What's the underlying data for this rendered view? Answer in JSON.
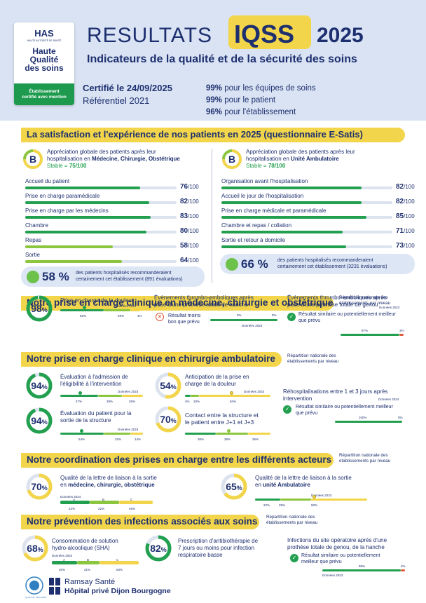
{
  "header": {
    "logo_has": "HAS",
    "logo_sub": "HAUTE AUTORITÉ DE SANTÉ",
    "logo_line1": "Haute",
    "logo_line2": "Qualité",
    "logo_line3": "des soins",
    "logo_cert1": "Établissement",
    "logo_cert2": "certifié avec mention",
    "title_a": "RESULTATS",
    "title_b": "IQSS",
    "title_c": "2025",
    "subtitle": "Indicateurs de la qualité et de la sécurité des soins",
    "certified": "Certifié le 24/09/2025",
    "referential": "Référentiel 2021",
    "p1_v": "99%",
    "p1_t": " pour les équipes de soins",
    "p2_v": "99%",
    "p2_t": " pour le patient",
    "p3_v": "96%",
    "p3_t": " pour l'établissement"
  },
  "satisfaction": {
    "title": "La satisfaction et l'expérience de nos patients en 2025 (questionnaire E-Satis)",
    "left": {
      "grade": "B",
      "desc1": "Appréciation globale des patients après leur",
      "desc2a": "hospitalisation en ",
      "desc2b": "Médecine, Chirurgie, Obstétrique",
      "stable_label": "Stable = ",
      "stable_value": "75/100",
      "items": [
        {
          "label": "Accueil du patient",
          "value": 76,
          "v": "76"
        },
        {
          "label": "Prise en charge paramédicale",
          "value": 82,
          "v": "82"
        },
        {
          "label": "Prise en charge par les médecins",
          "value": 83,
          "v": "83"
        },
        {
          "label": "Chambre",
          "value": 80,
          "v": "80"
        },
        {
          "label": "Repas",
          "value": 58,
          "v": "58"
        },
        {
          "label": "Sortie",
          "value": 64,
          "v": "64"
        }
      ],
      "reco_value": "58 %",
      "reco1": "des patients hospitalisés recommanderaient",
      "reco2": "certainement cet établissement (891 évaluations)"
    },
    "right": {
      "grade": "B",
      "desc1": "Appréciation globale des patients après leur",
      "desc2a": "hospitalisation en ",
      "desc2b": "Unité Ambulatoire",
      "stable_label": "Stable = ",
      "stable_value": "78/100",
      "items": [
        {
          "label": "Organisation avant l'hospitalisation",
          "value": 82,
          "v": "82"
        },
        {
          "label": "Accueil le jour de l'hospitalisation",
          "value": 82,
          "v": "82"
        },
        {
          "label": "Prise en charge médicale et paramédicale",
          "value": 85,
          "v": "85"
        },
        {
          "label": "Chambre et repas / collation",
          "value": 71,
          "v": "71"
        },
        {
          "label": "Sortie et retour à domicile",
          "value": 73,
          "v": "73"
        }
      ],
      "reco_value": "66 %",
      "reco1": "des patients hospitalisés recommanderaient",
      "reco2": "certainement cet établissement (3231 évaluations)"
    },
    "unit": "/100"
  },
  "mco": {
    "title": "Notre prise en charge clinique en médecine, chirurgie et obstétrique",
    "note1": "Répartition nationale des",
    "note2": "établissements par niveau",
    "douleur_value": "98",
    "douleur_unit": "%",
    "douleur_label": "Prise en charge de la douleur",
    "douleur_year": "Données 2024",
    "douleur_p": [
      "52%",
      "48%",
      "4%"
    ],
    "hanche_1": "Évènements thrombo-emboliques après",
    "hanche_2": "pose d'une prothèse totale de hanche",
    "hanche_r1": "Résultat moins",
    "hanche_r2": "bon que prévu",
    "hanche_year": "Données 2023",
    "hanche_p": [
      "0%",
      "0%"
    ],
    "genou_1": "Évènements thrombo-emboliques après",
    "genou_2": "pose d'une prothèse totale de genou",
    "genou_year": "Données 2023",
    "genou_r1": "Résultat similaire ou potentiellement meilleur",
    "genou_r2": "que prévu",
    "genou_p": [
      "97%",
      "3%"
    ]
  },
  "ambu": {
    "title": "Notre prise en charge clinique en chirurgie ambulatoire",
    "note1": "Répartition nationale des",
    "note2": "établissements par niveau",
    "elig_value": "94",
    "elig_1": "Évaluation à l'admission de",
    "elig_2": "l'éligibilité à l'intervention",
    "elig_year": "Données 2023",
    "elig_p": [
      "47%",
      "29%",
      "25%"
    ],
    "antic_value": "54",
    "antic_1": "Anticipation de la prise en",
    "antic_2": "charge de la douleur",
    "antic_year": "Données 2023",
    "antic_p": [
      "4%",
      "10%",
      "94%"
    ],
    "sortie_value": "94",
    "sortie_1": "Évaluation du patient pour la",
    "sortie_2": "sortie de la structure",
    "sortie_year": "Données 2023",
    "sortie_p": [
      "54%",
      "32%",
      "14%"
    ],
    "contact_value": "70",
    "contact_1": "Contact entre la structure et",
    "contact_2": "le patient entre J+1 et J+3",
    "contact_p": [
      "36%",
      "38%",
      "26%"
    ],
    "rehosp_1": "Réhospitalisations entre 1 et 3 jours après",
    "rehosp_2": "intervention",
    "rehosp_year": "Données 2024",
    "rehosp_r1": "Résultat similaire ou potentiellement meilleur",
    "rehosp_r2": "que prévu",
    "rehosp_p": [
      "100%",
      "0%"
    ]
  },
  "coord": {
    "title": "Notre coordination des prises en charge entre les différents acteurs",
    "note1": "Répartition nationale des",
    "note2": "établissements par niveau",
    "mco_value": "70",
    "mco_1": "Qualité de la lettre de liaison à la sortie",
    "mco_2a": "en ",
    "mco_2b": "médecine, chirurgie, obstétrique",
    "mco_year": "Données 2024",
    "mco_grades": [
      "A",
      "B",
      "C"
    ],
    "mco_p": [
      "22%",
      "22%",
      "45%"
    ],
    "amb_value": "65",
    "amb_1": "Qualité de la lettre de liaison à la sortie",
    "amb_2a": "en ",
    "amb_2b": "unité Ambulatoire",
    "amb_year": "Données 2023",
    "amb_p": [
      "22%",
      "29%",
      "50%"
    ]
  },
  "infect": {
    "title": "Notre prévention des infections associés aux soins",
    "note1": "Répartition nationale des",
    "note2": "établissements par niveau",
    "sha_value": "68",
    "sha_1": "Consommation de solution",
    "sha_2": "hydro-alcoolique (SHA)",
    "sha_year": "Données 2024",
    "sha_grades": [
      "A",
      "B",
      "C"
    ],
    "sha_p": [
      "26%",
      "21%",
      "53%"
    ],
    "atb_value": "82",
    "atb_1": "Prescription d'antibiothérapie de",
    "atb_2": "7 jours ou moins pour infection",
    "atb_3": "respiratoire basse",
    "site_1": "Infections du site opératoire après d'une",
    "site_2": "prothèse totale de genou, de la hanche",
    "site_r1": "Résultat similaire ou potentiellement",
    "site_r2": "meilleur que prévu",
    "site_year": "Données 2023",
    "site_p": [
      "98%",
      "2%"
    ]
  },
  "footer": {
    "brand1": "Ramsay Santé",
    "brand2": "Hôpital privé Dijon Bourgogne",
    "seal": "QUALITÉ · SÉCURITÉ · SOINS"
  },
  "colors": {
    "navy": "#1d2f6f",
    "green": "#22a04f",
    "lightgreen": "#8cc63f",
    "yellow": "#f2d54a",
    "orange": "#e05a3b",
    "band": "#f2d54a",
    "header_bg": "#d9e3f3"
  }
}
